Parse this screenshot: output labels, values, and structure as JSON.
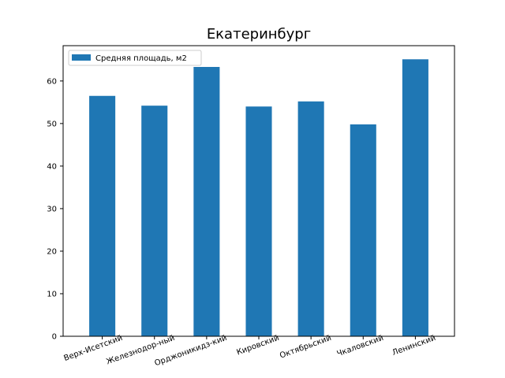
{
  "chart_data": {
    "type": "bar",
    "title": "Екатеринбург",
    "xlabel": "",
    "ylabel": "",
    "categories": [
      "Верх-Исетский",
      "Железнодор-ный",
      "Орджоникидз-кий",
      "Кировский",
      "Октябрьский",
      "Чкаловский",
      "Ленинский"
    ],
    "series": [
      {
        "name": "Средняя площадь, м2",
        "values": [
          56.5,
          54.2,
          63.3,
          54.0,
          55.2,
          49.8,
          65.1
        ],
        "color": "#1f77b4"
      }
    ],
    "ylim": [
      0,
      68.3
    ],
    "yticks": [
      0,
      10,
      20,
      30,
      40,
      50,
      60
    ],
    "grid": false,
    "legend_position": "top-left",
    "x_tick_rotation": -20
  }
}
